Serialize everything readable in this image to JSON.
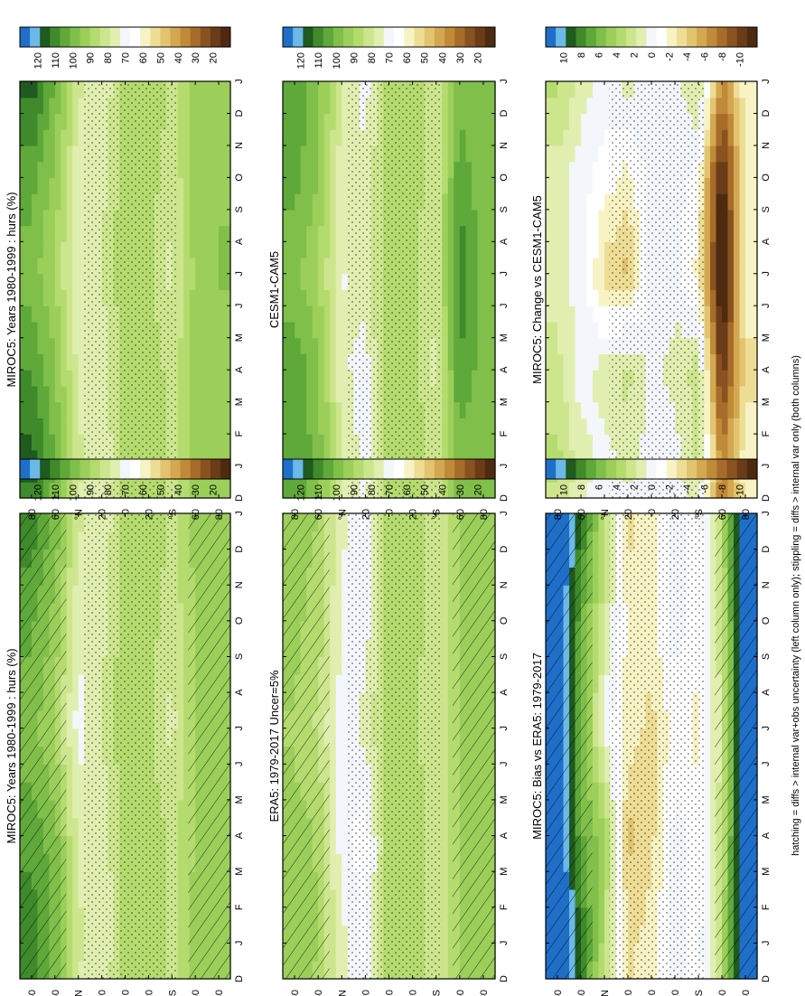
{
  "figure": {
    "footnote": "hatching = diffs > internal var+obs uncertainty (left column only); stippling = diffs > internal var only (both columns)"
  },
  "colorbars": {
    "absolute": {
      "labels": [
        "120",
        "110",
        "100",
        "90",
        "80",
        "70",
        "60",
        "50",
        "40",
        "30",
        "20"
      ],
      "colors": [
        "#1f6fc9",
        "#6ab9e9",
        "#1f5a1f",
        "#3f8a2a",
        "#5fa83a",
        "#7fbf4a",
        "#9bcf5a",
        "#b4db6e",
        "#cde68e",
        "#e0efb0",
        "#f3f7fb",
        "#ffffff",
        "#f7f3c4",
        "#eedd95",
        "#e2c470",
        "#d3a850",
        "#c08a38",
        "#a86c2a",
        "#8a5220",
        "#6b3c18",
        "#4e2a10"
      ]
    },
    "difference": {
      "labels": [
        "10",
        "8",
        "6",
        "4",
        "2",
        "0",
        "-2",
        "-4",
        "-6",
        "-8",
        "-10"
      ],
      "colors": [
        "#1f6fc9",
        "#6ab9e9",
        "#1f5a1f",
        "#3f8a2a",
        "#5fa83a",
        "#7fbf4a",
        "#9bcf5a",
        "#b4db6e",
        "#cde68e",
        "#e0efb0",
        "#f3f7fb",
        "#ffffff",
        "#f7f3c4",
        "#eedd95",
        "#e2c470",
        "#d3a850",
        "#c08a38",
        "#a86c2a",
        "#8a5220",
        "#6b3c18",
        "#4e2a10"
      ]
    }
  },
  "chart_data": [
    {
      "type": "heatmap",
      "title": "MIROC5: Years 1980-1999 : hurs (%)",
      "x_tick_labels": [
        "D",
        "J",
        "F",
        "M",
        "A",
        "M",
        "J",
        "J",
        "A",
        "S",
        "O",
        "N",
        "D",
        "J"
      ],
      "y_tick_labels": [
        "80",
        "60",
        "°N",
        "20",
        "0",
        "20",
        "°S",
        "60",
        "80"
      ],
      "ylim": [
        -90,
        90
      ],
      "colorbar": "absolute",
      "overlays": [
        "stippling",
        "hatching"
      ],
      "latitudes": [
        80,
        60,
        40,
        20,
        0,
        -20,
        -40,
        -60,
        -80
      ],
      "series": [
        {
          "month": "Jan",
          "values": [
            108,
            97,
            80,
            72,
            86,
            88,
            82,
            90,
            90
          ]
        },
        {
          "month": "Apr",
          "values": [
            102,
            96,
            76,
            73,
            87,
            88,
            81,
            89,
            91
          ]
        },
        {
          "month": "Jul",
          "values": [
            96,
            88,
            70,
            78,
            87,
            84,
            76,
            89,
            93
          ]
        },
        {
          "month": "Oct",
          "values": [
            100,
            92,
            74,
            76,
            87,
            86,
            79,
            89,
            92
          ]
        }
      ]
    },
    {
      "type": "heatmap",
      "title": "MIROC5: Years 1980-1999 : hurs (%)",
      "x_tick_labels": [
        "D",
        "J",
        "F",
        "M",
        "A",
        "M",
        "J",
        "J",
        "A",
        "S",
        "O",
        "N",
        "D",
        "J"
      ],
      "y_tick_labels": [
        "80",
        "60",
        "°N",
        "20",
        "0",
        "20",
        "°S",
        "60",
        "80"
      ],
      "ylim": [
        -90,
        90
      ],
      "colorbar": "absolute",
      "overlays": [
        "stippling"
      ],
      "latitudes": [
        80,
        60,
        40,
        20,
        0,
        -20,
        -40,
        -60,
        -80
      ],
      "series": [
        {
          "month": "Jan",
          "values": [
            112,
            98,
            80,
            72,
            86,
            88,
            82,
            90,
            92
          ]
        },
        {
          "month": "Apr",
          "values": [
            104,
            95,
            76,
            74,
            87,
            88,
            80,
            90,
            92
          ]
        },
        {
          "month": "Jul",
          "values": [
            96,
            88,
            72,
            78,
            87,
            84,
            76,
            90,
            94
          ]
        },
        {
          "month": "Oct",
          "values": [
            101,
            92,
            74,
            76,
            87,
            86,
            79,
            90,
            93
          ]
        }
      ]
    },
    {
      "type": "heatmap",
      "title": "ERA5: 1979-2017 Uncer=5%",
      "x_tick_labels": [
        "D",
        "J",
        "F",
        "M",
        "A",
        "M",
        "J",
        "J",
        "A",
        "S",
        "O",
        "N",
        "D",
        "J"
      ],
      "y_tick_labels": [
        "80",
        "60",
        "°N",
        "20",
        "0",
        "20",
        "°S",
        "60",
        "80"
      ],
      "ylim": [
        -90,
        90
      ],
      "colorbar": "absolute",
      "overlays": [
        "stippling",
        "hatching"
      ],
      "latitudes": [
        80,
        60,
        40,
        20,
        0,
        -20,
        -40,
        -60,
        -80
      ],
      "series": [
        {
          "month": "Jan",
          "values": [
            92,
            88,
            74,
            66,
            86,
            88,
            80,
            88,
            92
          ]
        },
        {
          "month": "Apr",
          "values": [
            90,
            88,
            70,
            64,
            86,
            88,
            80,
            88,
            92
          ]
        },
        {
          "month": "Jul",
          "values": [
            88,
            82,
            70,
            74,
            86,
            84,
            78,
            88,
            92
          ]
        },
        {
          "month": "Oct",
          "values": [
            90,
            86,
            72,
            70,
            86,
            86,
            80,
            88,
            92
          ]
        }
      ]
    },
    {
      "type": "heatmap",
      "title": "CESM1-CAM5",
      "x_tick_labels": [
        "D",
        "J",
        "F",
        "M",
        "A",
        "M",
        "J",
        "J",
        "A",
        "S",
        "O",
        "N",
        "D",
        "J"
      ],
      "y_tick_labels": [
        "80",
        "60",
        "°N",
        "20",
        "0",
        "20",
        "°S",
        "60",
        "80"
      ],
      "ylim": [
        -90,
        90
      ],
      "colorbar": "absolute",
      "overlays": [
        "stippling"
      ],
      "latitudes": [
        80,
        60,
        40,
        20,
        0,
        -20,
        -40,
        -60,
        -80
      ],
      "series": [
        {
          "month": "Jan",
          "values": [
            104,
            96,
            78,
            70,
            86,
            88,
            80,
            96,
            94
          ]
        },
        {
          "month": "Apr",
          "values": [
            102,
            96,
            74,
            70,
            87,
            86,
            76,
            104,
            96
          ]
        },
        {
          "month": "Jul",
          "values": [
            96,
            88,
            72,
            76,
            87,
            84,
            78,
            108,
            96
          ]
        },
        {
          "month": "Oct",
          "values": [
            100,
            94,
            74,
            74,
            87,
            86,
            80,
            102,
            95
          ]
        }
      ]
    },
    {
      "type": "heatmap",
      "title": "MIROC5: Bias vs ERA5: 1979-2017",
      "x_tick_labels": [
        "D",
        "J",
        "F",
        "M",
        "A",
        "M",
        "J",
        "J",
        "A",
        "S",
        "O",
        "N",
        "D",
        "J"
      ],
      "y_tick_labels": [
        "80",
        "60",
        "°N",
        "20",
        "0",
        "20",
        "°S",
        "60",
        "80"
      ],
      "ylim": [
        -90,
        90
      ],
      "colorbar": "difference",
      "overlays": [
        "stippling",
        "hatching"
      ],
      "latitudes": [
        80,
        60,
        40,
        20,
        0,
        -20,
        -40,
        -60,
        -80
      ],
      "series": [
        {
          "month": "Jan",
          "values": [
            12,
            8,
            3,
            -3,
            -2,
            0,
            -1,
            3,
            12
          ]
        },
        {
          "month": "Apr",
          "values": [
            12,
            6,
            4,
            -4,
            -3,
            0,
            -1,
            2,
            12
          ]
        },
        {
          "month": "Jul",
          "values": [
            12,
            6,
            0,
            -2,
            -3,
            -1,
            -2,
            2,
            12
          ]
        },
        {
          "month": "Oct",
          "values": [
            12,
            6,
            2,
            -2,
            -2,
            0,
            -1,
            2,
            12
          ]
        }
      ]
    },
    {
      "type": "heatmap",
      "title": "MIROC5: Change vs CESM1-CAM5",
      "x_tick_labels": [
        "D",
        "J",
        "F",
        "M",
        "A",
        "M",
        "J",
        "J",
        "A",
        "S",
        "O",
        "N",
        "D",
        "J"
      ],
      "y_tick_labels": [
        "80",
        "60",
        "°N",
        "20",
        "0",
        "20",
        "°S",
        "60",
        "80"
      ],
      "ylim": [
        -90,
        90
      ],
      "colorbar": "difference",
      "overlays": [
        "stippling"
      ],
      "latitudes": [
        80,
        60,
        40,
        20,
        0,
        -20,
        -40,
        -60,
        -80
      ],
      "series": [
        {
          "month": "Jan",
          "values": [
            3,
            1,
            0,
            1,
            0,
            0,
            2,
            -6,
            -2
          ]
        },
        {
          "month": "Apr",
          "values": [
            2,
            0,
            1,
            2,
            0,
            1,
            2,
            -10,
            -3
          ]
        },
        {
          "month": "Jul",
          "values": [
            1,
            0,
            -3,
            -4,
            0,
            0,
            -2,
            -12,
            -2
          ]
        },
        {
          "month": "Oct",
          "values": [
            1,
            0,
            -1,
            -2,
            0,
            0,
            -1,
            -11,
            -2
          ]
        }
      ]
    }
  ]
}
